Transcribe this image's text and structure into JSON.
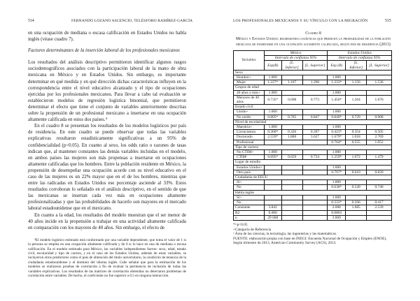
{
  "left": {
    "page_number": "514",
    "running_head": "FERNANDO LOZANO ASCENCIO, TELÉSFORO RAMÍREZ-GARCÍA",
    "paragraphs": [
      "en una ocupación de mediana o escasa calificación en Estados Unidos no habla inglés (véase cuadro 7)."
    ],
    "heading": "Factores determinantes de la inserción laboral de los profesionales mexicanos",
    "body": [
      "Los resultados del análisis descriptivo permitieron identificar algunos rasgos sociodemográficos asociados con la participación laboral de la mano de obra mexicana en México y en Estados Unidos. Sin embargo, es importante determinar en qué medida y en qué dirección dichas características influyen en la correspondencia entre el nivel educativo alcanzado y el tipo de ocupaciones ejercidas por los profesionales mexicanos. Para llevar a cabo tal evaluación se establecieron modelos de regresión logística binomial, que permitieron determinar el efecto que tiene el conjunto de variables anteriormente descritas sobre la propensión de un profesional mexicano a insertarse en una ocupación altamente calificada en estos dos países.⁴",
      "En el cuadro 8 se presentan los resultados de los modelos logísticos por país de residencia. En este cuadro se puede observar que todas las variables explicativas resultaron estadísticamente significativas a un 95% de confidencialidad (p<0.05). En cuanto al sexo, los odds ratio o razones de tasas indican que, al mantener constantes las demás variables incluidas en el modelo, en ambos países las mujeres son más propensas a insertarse en ocupaciones altamente calificadas que los hombres. Entre la población residente en México, la propensión de desempeñar una ocupación acorde con su nivel educativo en el caso de las mujeres es un 22% mayor que en el de los hombres, mientras que entre las radicadas en Estados Unidos ese porcentaje asciende al 33%. Estos resultados corroboran lo señalado en el análisis descriptivo, en el sentido de que las mexicanas se insertan cada vez más en ocupaciones altamente profesionalizadas y que las probabilidades de hacerlo son mayores en el mercado laboral estadounidense que en el mexicano.",
      "En cuanto a la edad, los resultados del modelo muestran que el ser menor de 40 años incide en la propensión a trabajar en una actividad altamente calificada en comparación con los mayores de 40 años. Sin embargo, el efecto de"
    ],
    "footnote": "⁴El modelo logístico estimado está conformado por una variable dependiente, que toma el valor de 1 si la persona se emplea en una ocupación altamente calificada y de 0 si lo hace en una de mediana o escasa calificación. En el modelo estimado para México, las variables independientes fueron: sexo, edad, estado civil, escolaridad y tipo de carrera, y en el caso de los Estados Unidos, además de estas variables, se incluyeron otros predictores como el país de obtención del título universitario, la condición de tenencia de la ciudadanía estadounidense y el dominio del idioma inglés. Cabe señalar que para la estimación de los modelos se realizaron pruebas de correlación a fin de evaluar la pertinencia de inclusión de todas las variables explicativas. Los resultados de las matrices de correlación obtenidas no detectaron problemas de correlación entre variables. De hecho, el coeficiente no fue superior a 0.5 en ninguna interacción."
  },
  "right": {
    "page_number": "515",
    "running_head": "LOS PROFESIONALES MEXICANOS Y SU VÍNCULO CON LA MIGRACIÓN",
    "caption": {
      "label": "Cuadro 8",
      "title": "México y Estados Unidos: regresiones logísticas que predicen la probabilidad de la población mexicana de insertarse en una ocupación altamente calificada, según país de residencia (2013)"
    },
    "table": {
      "var_header": "Variables",
      "groups": [
        "México",
        "Estados Unidos"
      ],
      "interval": "Intervalo de confianza 95%",
      "cols": [
        "Exp(B)",
        "[L. Inferior]",
        "[L. Superior]",
        "Exp (B)",
        "[L. Inferior]",
        "[L. Superior]"
      ],
      "rows": [
        {
          "section": "Sexo"
        },
        {
          "label": "Hombre+",
          "v": [
            "1.000",
            "",
            "",
            "1.000",
            "",
            ""
          ]
        },
        {
          "label": "Mujer",
          "v": [
            "1.227*",
            "1.167",
            "1.290",
            "1.333*",
            "1.156",
            "1.536"
          ]
        },
        {
          "section": "Grupos de edad"
        },
        {
          "label": "40 años o más+",
          "v": [
            "1.000",
            "",
            "",
            "1.000",
            "",
            ""
          ]
        },
        {
          "label": "Menores de 40 años",
          "v": [
            "0.735*",
            "0.698",
            "0.773",
            "1.456*",
            "1.264",
            "1.676"
          ]
        },
        {
          "section": "Estado civil"
        },
        {
          "label": "Unido+",
          "v": [
            "1.000",
            "",
            "",
            "1.000",
            "",
            ""
          ]
        },
        {
          "label": "No unido",
          "v": [
            "0.805*",
            "0.765",
            "0.847",
            "0.840*",
            "0.729",
            "0.968"
          ]
        },
        {
          "section": "Nivel de escolaridad"
        },
        {
          "label": "Maestría+",
          "v": [
            "1.000",
            "",
            "",
            "1.000",
            "",
            ""
          ]
        },
        {
          "label": "Licenciatura",
          "v": [
            "0.360*",
            "0.326",
            "0.397",
            "0.423*",
            "0.354",
            "0.505"
          ]
        },
        {
          "label": "Doctorado",
          "v": [
            "2.559*",
            "1.800",
            "3.627",
            "1.679*",
            "1.018",
            "2.769"
          ]
        },
        {
          "label": "Profesional",
          "v": [
            "",
            "",
            "",
            "0.764*",
            "0.555",
            "1.052"
          ]
        },
        {
          "section": "Tipo de carrera"
        },
        {
          "label": "No CTIM+",
          "v": [
            "1.000",
            "",
            "",
            "1.000",
            "",
            ""
          ]
        },
        {
          "label": "CTIMᵃ",
          "v": [
            "0.695*",
            "0.659",
            "0.734",
            "1.259*",
            "1.072",
            "1.479"
          ]
        },
        {
          "section": "Lugar de estudio"
        },
        {
          "label": "Estados Unidos+",
          "v": [
            "",
            "",
            "",
            "1.000",
            "",
            ""
          ]
        },
        {
          "label": "Otro país",
          "v": [
            "",
            "",
            "",
            "0.707*",
            "0.610",
            "0.820"
          ]
        },
        {
          "section": "Ciudadanía de EEUU"
        },
        {
          "label": "Sí+",
          "v": [
            "",
            "",
            "",
            "1.000",
            "",
            ""
          ]
        },
        {
          "label": "No",
          "v": [
            "",
            "",
            "",
            "0.638*",
            "0.549",
            "0.740"
          ]
        },
        {
          "section": "Habla inglés"
        },
        {
          "label": "Sí+",
          "v": [
            "",
            "",
            "",
            "1.000",
            "",
            ""
          ]
        },
        {
          "label": "No",
          "v": [
            "",
            "",
            "",
            "0.333*",
            "0.266",
            "0.417"
          ]
        },
        {
          "label": "Constante",
          "top": true,
          "v": [
            "3.842",
            "",
            "",
            "2.068",
            "1.685",
            "2.539"
          ]
        },
        {
          "label": "R2",
          "top": true,
          "v": [
            "0.060",
            "",
            "",
            "0.0863",
            "",
            ""
          ]
        },
        {
          "label": "n",
          "top": true,
          "v": [
            "29 608",
            "",
            "",
            "3 869",
            "",
            ""
          ]
        }
      ]
    },
    "notes": [
      "*=p<0.05",
      "+Categoría de Referencia",
      "ᵃ Área de las ciencias, la tecnología, las ingenierías y las matemáticas.",
      "FUENTE: elaboración propia con base en INEGI: Encuesta Nacional de Ocupación y Empleo (ENOE), Según trimestre de 2013, American Community Survey (ACS), 2013."
    ]
  }
}
